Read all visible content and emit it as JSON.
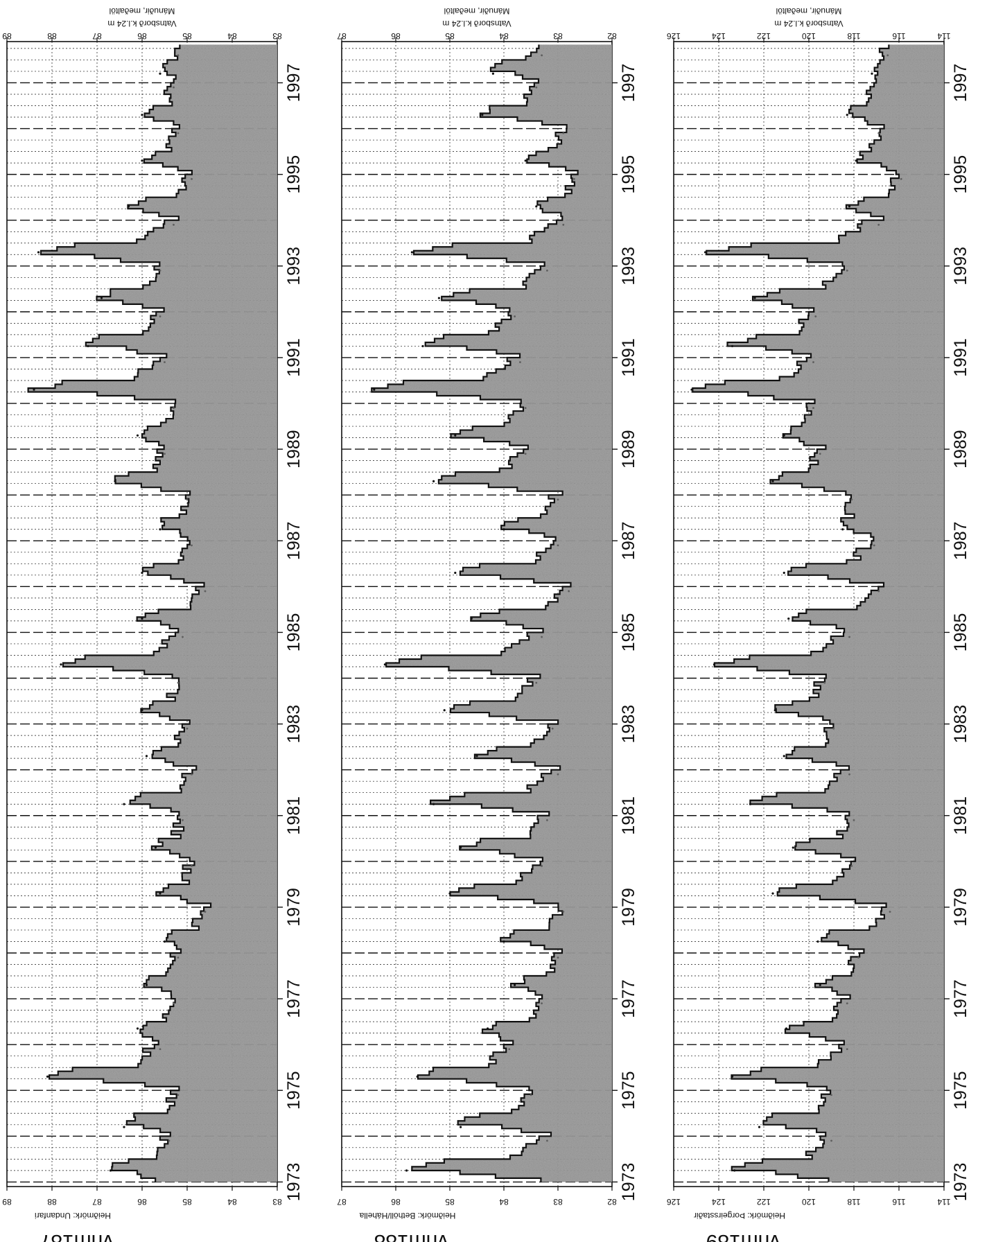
{
  "page": {
    "colors": {
      "ink": "#111111",
      "shade": "#9a9a9a",
      "shade_dark": "#5e5e5e",
      "paper": "#ffffff"
    }
  },
  "chart_data": [
    {
      "type": "area",
      "station_id": "vhm187",
      "benchmark_label": "Heiðmörk: Undanfari",
      "header_line1": "Vatnsborð k.l.24 m",
      "header_line2": "Mánuðir, meðaltöl",
      "ylim": [
        83,
        89
      ],
      "yticks": [
        "83",
        "84",
        "85",
        "86",
        "87",
        "88",
        "89"
      ],
      "xlim": [
        1972.9,
        1997.9
      ],
      "xticks": [
        "1973",
        "1975",
        "1977",
        "1979",
        "1981",
        "1983",
        "1985",
        "1987",
        "1989",
        "1991",
        "1993",
        "1995",
        "1997"
      ],
      "grid": true,
      "peaks": [
        {
          "x": 1973.25,
          "y": 86.7
        },
        {
          "x": 1974.2,
          "y": 86.4
        },
        {
          "x": 1975.3,
          "y": 88.1
        },
        {
          "x": 1976.35,
          "y": 86.1
        },
        {
          "x": 1977.3,
          "y": 85.9
        },
        {
          "x": 1978.25,
          "y": 85.5
        },
        {
          "x": 1979.3,
          "y": 85.6
        },
        {
          "x": 1980.3,
          "y": 85.7
        },
        {
          "x": 1981.25,
          "y": 86.4
        },
        {
          "x": 1982.3,
          "y": 85.9
        },
        {
          "x": 1983.3,
          "y": 86.0
        },
        {
          "x": 1984.3,
          "y": 87.8
        },
        {
          "x": 1985.3,
          "y": 86.0
        },
        {
          "x": 1986.3,
          "y": 86.0
        },
        {
          "x": 1987.25,
          "y": 85.6
        },
        {
          "x": 1988.3,
          "y": 86.6
        },
        {
          "x": 1989.3,
          "y": 86.1
        },
        {
          "x": 1990.3,
          "y": 88.4
        },
        {
          "x": 1991.25,
          "y": 87.2
        },
        {
          "x": 1992.3,
          "y": 86.9
        },
        {
          "x": 1993.3,
          "y": 88.3
        },
        {
          "x": 1994.3,
          "y": 86.3
        },
        {
          "x": 1995.3,
          "y": 86.0
        },
        {
          "x": 1996.3,
          "y": 86.0
        },
        {
          "x": 1997.2,
          "y": 85.6
        }
      ],
      "minima": [
        {
          "x": 1973.9,
          "y": 85.4
        },
        {
          "x": 1974.9,
          "y": 85.2
        },
        {
          "x": 1975.9,
          "y": 85.6
        },
        {
          "x": 1976.9,
          "y": 85.3
        },
        {
          "x": 1977.9,
          "y": 85.2
        },
        {
          "x": 1978.9,
          "y": 84.6
        },
        {
          "x": 1979.9,
          "y": 84.9
        },
        {
          "x": 1980.9,
          "y": 85.1
        },
        {
          "x": 1981.9,
          "y": 84.9
        },
        {
          "x": 1982.9,
          "y": 85.0
        },
        {
          "x": 1983.9,
          "y": 85.2
        },
        {
          "x": 1984.9,
          "y": 85.1
        },
        {
          "x": 1985.9,
          "y": 84.6
        },
        {
          "x": 1986.9,
          "y": 84.9
        },
        {
          "x": 1987.9,
          "y": 85.0
        },
        {
          "x": 1988.9,
          "y": 85.5
        },
        {
          "x": 1989.9,
          "y": 85.3
        },
        {
          "x": 1990.9,
          "y": 85.5
        },
        {
          "x": 1991.9,
          "y": 85.6
        },
        {
          "x": 1992.9,
          "y": 85.6
        },
        {
          "x": 1993.9,
          "y": 85.3
        },
        {
          "x": 1994.9,
          "y": 84.9
        },
        {
          "x": 1995.9,
          "y": 85.2
        },
        {
          "x": 1996.9,
          "y": 85.3
        },
        {
          "x": 1997.6,
          "y": 85.2
        }
      ]
    },
    {
      "type": "area",
      "station_id": "vhm188",
      "benchmark_label": "Heiðmörk: Bethöll/Háhella",
      "header_line1": "Vatnsborð k.l.24 m",
      "header_line2": "Mánuðir, meðaltöl",
      "ylim": [
        82,
        87
      ],
      "yticks": [
        "82",
        "83",
        "84",
        "85",
        "86",
        "87"
      ],
      "xlim": [
        1972.9,
        1997.9
      ],
      "xticks": [
        "1973",
        "1975",
        "1977",
        "1979",
        "1981",
        "1983",
        "1985",
        "1987",
        "1989",
        "1991",
        "1993",
        "1995",
        "1997"
      ],
      "grid": true,
      "peaks": [
        {
          "x": 1973.25,
          "y": 85.8
        },
        {
          "x": 1974.2,
          "y": 84.8
        },
        {
          "x": 1975.3,
          "y": 85.6
        },
        {
          "x": 1976.35,
          "y": 84.3
        },
        {
          "x": 1977.3,
          "y": 83.8
        },
        {
          "x": 1978.25,
          "y": 84.0
        },
        {
          "x": 1979.3,
          "y": 85.0
        },
        {
          "x": 1980.3,
          "y": 84.8
        },
        {
          "x": 1981.25,
          "y": 85.3
        },
        {
          "x": 1982.3,
          "y": 84.5
        },
        {
          "x": 1983.3,
          "y": 85.1
        },
        {
          "x": 1984.3,
          "y": 86.2
        },
        {
          "x": 1985.3,
          "y": 84.6
        },
        {
          "x": 1986.3,
          "y": 84.9
        },
        {
          "x": 1987.25,
          "y": 84.0
        },
        {
          "x": 1988.3,
          "y": 85.3
        },
        {
          "x": 1989.3,
          "y": 84.9
        },
        {
          "x": 1990.3,
          "y": 86.4
        },
        {
          "x": 1991.25,
          "y": 85.5
        },
        {
          "x": 1992.3,
          "y": 85.2
        },
        {
          "x": 1993.3,
          "y": 85.7
        },
        {
          "x": 1994.3,
          "y": 83.4
        },
        {
          "x": 1995.3,
          "y": 83.6
        },
        {
          "x": 1996.3,
          "y": 84.4
        },
        {
          "x": 1997.2,
          "y": 84.2
        }
      ],
      "minima": [
        {
          "x": 1973.9,
          "y": 83.2
        },
        {
          "x": 1974.9,
          "y": 83.5
        },
        {
          "x": 1975.9,
          "y": 83.9
        },
        {
          "x": 1976.9,
          "y": 83.3
        },
        {
          "x": 1977.9,
          "y": 83.0
        },
        {
          "x": 1978.9,
          "y": 82.9
        },
        {
          "x": 1979.9,
          "y": 83.3
        },
        {
          "x": 1980.9,
          "y": 83.2
        },
        {
          "x": 1981.9,
          "y": 83.0
        },
        {
          "x": 1982.9,
          "y": 83.1
        },
        {
          "x": 1983.9,
          "y": 83.4
        },
        {
          "x": 1984.9,
          "y": 83.3
        },
        {
          "x": 1985.9,
          "y": 82.8
        },
        {
          "x": 1986.9,
          "y": 83.0
        },
        {
          "x": 1987.9,
          "y": 83.0
        },
        {
          "x": 1988.9,
          "y": 83.6
        },
        {
          "x": 1989.9,
          "y": 83.6
        },
        {
          "x": 1990.9,
          "y": 83.7
        },
        {
          "x": 1991.9,
          "y": 83.8
        },
        {
          "x": 1992.9,
          "y": 83.2
        },
        {
          "x": 1993.9,
          "y": 82.9
        },
        {
          "x": 1994.9,
          "y": 82.7
        },
        {
          "x": 1995.9,
          "y": 82.9
        },
        {
          "x": 1996.9,
          "y": 83.4
        },
        {
          "x": 1997.6,
          "y": 83.3
        }
      ]
    },
    {
      "type": "area",
      "station_id": "vhm189",
      "benchmark_label": "Heiðmörk: Þorgeirsstaðir",
      "header_line1": "Vatnsborð k.l.24 m",
      "header_line2": "Mánuðir, meðaltöl",
      "ylim": [
        114,
        126
      ],
      "yticks": [
        "114",
        "116",
        "118",
        "120",
        "122",
        "124",
        "126"
      ],
      "xlim": [
        1972.9,
        1997.9
      ],
      "xticks": [
        "1973",
        "1975",
        "1977",
        "1979",
        "1981",
        "1983",
        "1985",
        "1987",
        "1989",
        "1991",
        "1993",
        "1995",
        "1997"
      ],
      "grid": true,
      "peaks": [
        {
          "x": 1973.25,
          "y": 123.3
        },
        {
          "x": 1974.2,
          "y": 122.2
        },
        {
          "x": 1975.3,
          "y": 123.4
        },
        {
          "x": 1976.35,
          "y": 121.0
        },
        {
          "x": 1977.3,
          "y": 119.5
        },
        {
          "x": 1978.25,
          "y": 119.6
        },
        {
          "x": 1979.3,
          "y": 121.6
        },
        {
          "x": 1980.3,
          "y": 120.7
        },
        {
          "x": 1981.25,
          "y": 122.6
        },
        {
          "x": 1982.3,
          "y": 121.1
        },
        {
          "x": 1983.3,
          "y": 121.5
        },
        {
          "x": 1984.3,
          "y": 124.2
        },
        {
          "x": 1985.3,
          "y": 120.9
        },
        {
          "x": 1986.3,
          "y": 121.1
        },
        {
          "x": 1987.25,
          "y": 118.5
        },
        {
          "x": 1988.3,
          "y": 121.6
        },
        {
          "x": 1989.3,
          "y": 121.1
        },
        {
          "x": 1990.3,
          "y": 125.2
        },
        {
          "x": 1991.25,
          "y": 123.4
        },
        {
          "x": 1992.3,
          "y": 122.4
        },
        {
          "x": 1993.3,
          "y": 124.6
        },
        {
          "x": 1994.3,
          "y": 118.2
        },
        {
          "x": 1995.3,
          "y": 117.9
        },
        {
          "x": 1996.3,
          "y": 118.3
        },
        {
          "x": 1997.2,
          "y": 117.2
        }
      ],
      "minima": [
        {
          "x": 1973.9,
          "y": 119.0
        },
        {
          "x": 1974.9,
          "y": 119.0
        },
        {
          "x": 1975.9,
          "y": 118.3
        },
        {
          "x": 1976.9,
          "y": 118.3
        },
        {
          "x": 1977.9,
          "y": 117.8
        },
        {
          "x": 1978.9,
          "y": 116.4
        },
        {
          "x": 1979.9,
          "y": 118.1
        },
        {
          "x": 1980.9,
          "y": 118.0
        },
        {
          "x": 1981.9,
          "y": 118.2
        },
        {
          "x": 1982.9,
          "y": 118.9
        },
        {
          "x": 1983.9,
          "y": 119.3
        },
        {
          "x": 1984.9,
          "y": 118.2
        },
        {
          "x": 1985.9,
          "y": 116.9
        },
        {
          "x": 1986.9,
          "y": 117.1
        },
        {
          "x": 1987.9,
          "y": 118.1
        },
        {
          "x": 1988.9,
          "y": 119.5
        },
        {
          "x": 1989.9,
          "y": 119.8
        },
        {
          "x": 1990.9,
          "y": 119.8
        },
        {
          "x": 1991.9,
          "y": 119.7
        },
        {
          "x": 1992.9,
          "y": 118.3
        },
        {
          "x": 1993.9,
          "y": 116.9
        },
        {
          "x": 1994.9,
          "y": 115.9
        },
        {
          "x": 1995.9,
          "y": 116.9
        },
        {
          "x": 1996.9,
          "y": 117.2
        },
        {
          "x": 1997.6,
          "y": 116.5
        }
      ]
    }
  ]
}
